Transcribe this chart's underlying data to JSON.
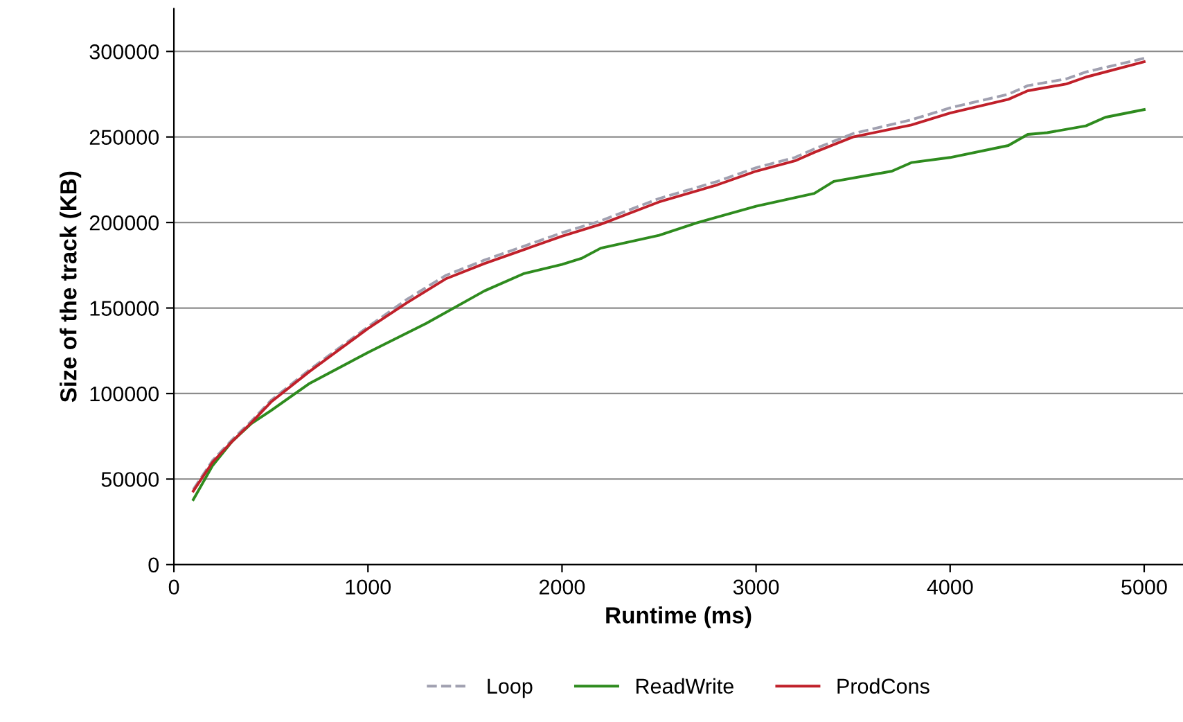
{
  "chart_data": {
    "type": "line",
    "xlabel": "Runtime (ms)",
    "ylabel": "Size of the track (KB)",
    "xlim": [
      0,
      5200
    ],
    "ylim": [
      0,
      325000
    ],
    "xticks": [
      0,
      1000,
      2000,
      3000,
      4000,
      5000
    ],
    "yticks": [
      0,
      50000,
      100000,
      150000,
      200000,
      250000,
      300000
    ],
    "grid": "y",
    "legend": "bottom",
    "marker": "none",
    "series": [
      {
        "name": "Loop",
        "color": "#a0a0b0",
        "line_style": "dashed",
        "x": [
          100,
          200,
          300,
          400,
          500,
          700,
          1000,
          1200,
          1400,
          1600,
          2000,
          2200,
          2500,
          2800,
          3000,
          3200,
          3300,
          3500,
          3800,
          4000,
          4300,
          4400,
          4600,
          4700,
          5000
        ],
        "values": [
          44000,
          61000,
          73000,
          84000,
          96000,
          114000,
          139000,
          155000,
          169000,
          178000,
          194000,
          201000,
          214000,
          224000,
          232000,
          238000,
          243000,
          252000,
          260000,
          267000,
          275000,
          280000,
          284000,
          288000,
          296000
        ]
      },
      {
        "name": "ReadWrite",
        "color": "#2e8b1e",
        "line_style": "solid",
        "x": [
          100,
          200,
          300,
          400,
          500,
          700,
          1000,
          1300,
          1600,
          1800,
          2000,
          2100,
          2200,
          2500,
          2700,
          3000,
          3300,
          3400,
          3700,
          3800,
          4000,
          4300,
          4400,
          4500,
          4700,
          4800,
          5000
        ],
        "values": [
          38000,
          58000,
          72000,
          82500,
          90000,
          106000,
          124000,
          141000,
          160000,
          170000,
          175500,
          179000,
          185000,
          192500,
          200000,
          209500,
          217000,
          224000,
          230000,
          235000,
          238000,
          245000,
          251500,
          252500,
          256500,
          261500,
          266000
        ]
      },
      {
        "name": "ProdCons",
        "color": "#c0202a",
        "line_style": "solid",
        "x": [
          100,
          200,
          300,
          400,
          500,
          700,
          1000,
          1200,
          1400,
          1600,
          2000,
          2200,
          2500,
          2800,
          3000,
          3200,
          3300,
          3500,
          3800,
          4000,
          4300,
          4400,
          4600,
          4700,
          5000
        ],
        "values": [
          43000,
          60000,
          72000,
          83000,
          95000,
          113000,
          138000,
          153000,
          167000,
          176000,
          192000,
          199000,
          212000,
          222000,
          230000,
          236000,
          241000,
          250000,
          257000,
          264000,
          272000,
          277000,
          281000,
          285000,
          294000
        ]
      }
    ]
  }
}
